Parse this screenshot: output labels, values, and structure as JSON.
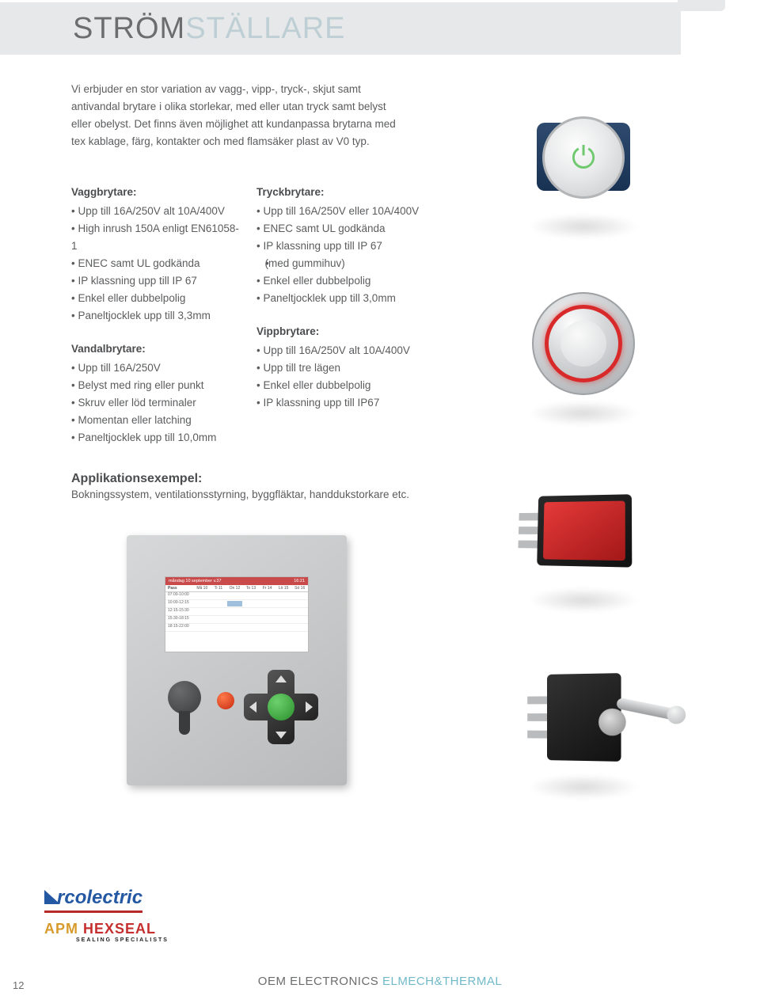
{
  "title": {
    "strong": "STRÖM",
    "light": "STÄLLARE"
  },
  "intro": "Vi erbjuder en stor variation av vagg-, vipp-, tryck-, skjut samt antivandal brytare i olika storlekar, med eller utan tryck samt belyst eller obelyst. Det finns även möjlighet att kundanpassa brytarna med tex kablage, färg, kontakter och med flamsäker plast av V0 typ.",
  "sections": {
    "vagg": {
      "title": "Vaggbrytare:",
      "items": [
        "Upp till 16A/250V alt 10A/400V",
        "High inrush 150A enligt EN61058-1",
        "ENEC samt UL godkända",
        "IP klassning upp till IP 67",
        "Enkel eller dubbelpolig",
        "Paneltjocklek upp till 3,3mm"
      ]
    },
    "vandal": {
      "title": "Vandalbrytare:",
      "items": [
        "Upp till 16A/250V",
        "Belyst med ring eller punkt",
        "Skruv eller löd terminaler",
        "Momentan eller latching",
        "Paneltjocklek upp till 10,0mm"
      ]
    },
    "tryck": {
      "title": "Tryckbrytare:",
      "items": [
        "Upp till 16A/250V eller 10A/400V",
        "ENEC samt UL godkända",
        "IP klassning upp till IP 67",
        "(med gummihuv)",
        "Enkel eller dubbelpolig",
        "Paneltjocklek upp till 3,0mm"
      ],
      "sub_indexes": [
        3
      ]
    },
    "vipp": {
      "title": "Vippbrytare:",
      "items": [
        "Upp till 16A/250V alt 10A/400V",
        "Upp till tre lägen",
        "Enkel eller dubbelpolig",
        "IP klassning upp till IP67"
      ]
    }
  },
  "app": {
    "title": "Applikationsexempel:",
    "text": "Bokningssystem, ventilationsstyrning, byggfläktar, handdukstorkare etc."
  },
  "panel": {
    "header_left": "måndag 10 september v.37",
    "header_right": "16:21",
    "pass_label": "Pass",
    "days": [
      "Må 10",
      "Ti 11",
      "On 12",
      "To 13",
      "Fr 14",
      "Lö 15",
      "Sö 16"
    ],
    "times": [
      "07:00-10:00",
      "10:00-12:15",
      "12:15-15:30",
      "15:30-18:15",
      "18:15-22:00"
    ]
  },
  "logos": {
    "arc": "rcolectric",
    "apm1": "APM ",
    "apm2": "HEXSEAL",
    "apm_sub": "SEALING SPECIALISTS"
  },
  "footer": {
    "left": "OEM ELECTRONICS ",
    "right": "ELMECH&THERMAL"
  },
  "page_number": "12",
  "colors": {
    "accent_red": "#c62a10",
    "accent_green": "#6dd26d",
    "panel_bg": "#d7d8d9",
    "text": "#5b5c5e"
  }
}
